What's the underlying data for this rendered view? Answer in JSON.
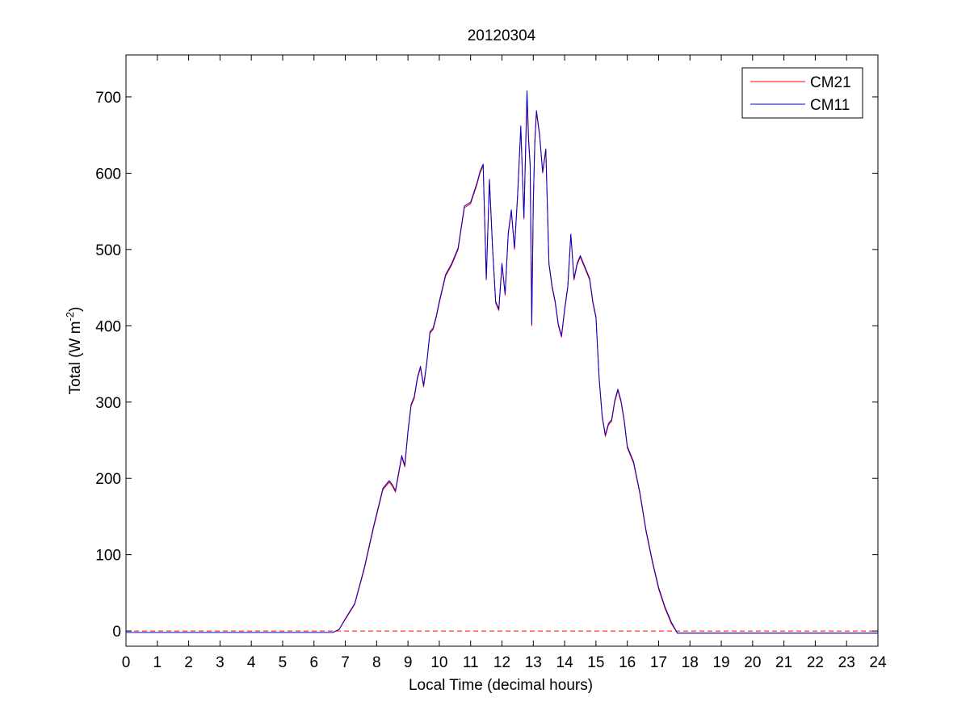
{
  "chart_data": {
    "type": "line",
    "title": "20120304",
    "xlabel": "Local Time (decimal hours)",
    "ylabel": {
      "prefix": "Total (W m",
      "superscript": "-2",
      "suffix": ")"
    },
    "xlim": [
      0,
      24
    ],
    "ylim": [
      -20,
      755
    ],
    "xticks": [
      0,
      1,
      2,
      3,
      4,
      5,
      6,
      7,
      8,
      9,
      10,
      11,
      12,
      13,
      14,
      15,
      16,
      17,
      18,
      19,
      20,
      21,
      22,
      23,
      24
    ],
    "yticks": [
      0,
      100,
      200,
      300,
      400,
      500,
      600,
      700
    ],
    "grid": false,
    "legend_position": "top-right",
    "reference_line": {
      "y": 0,
      "style": "dashed",
      "color": "#ff0000"
    },
    "series": [
      {
        "name": "CM21",
        "color": "#ff0000",
        "x": [
          0,
          1,
          2,
          3,
          4,
          5,
          6,
          6.6,
          6.8,
          7,
          7.3,
          7.6,
          7.9,
          8.2,
          8.4,
          8.5,
          8.6,
          8.7,
          8.8,
          8.9,
          9,
          9.1,
          9.2,
          9.3,
          9.4,
          9.5,
          9.6,
          9.7,
          9.8,
          9.9,
          10,
          10.2,
          10.4,
          10.6,
          10.8,
          11,
          11.2,
          11.3,
          11.4,
          11.5,
          11.6,
          11.7,
          11.8,
          11.9,
          12,
          12.1,
          12.2,
          12.3,
          12.4,
          12.5,
          12.6,
          12.7,
          12.8,
          12.85,
          12.9,
          12.95,
          13,
          13.05,
          13.1,
          13.2,
          13.3,
          13.4,
          13.5,
          13.6,
          13.7,
          13.8,
          13.9,
          14,
          14.1,
          14.2,
          14.3,
          14.4,
          14.5,
          14.6,
          14.7,
          14.8,
          14.9,
          15,
          15.1,
          15.2,
          15.3,
          15.4,
          15.5,
          15.6,
          15.7,
          15.8,
          15.9,
          16,
          16.2,
          16.4,
          16.6,
          16.8,
          17,
          17.2,
          17.4,
          17.6,
          17.8,
          18,
          18.2,
          19,
          20,
          21,
          22,
          23,
          24
        ],
        "y": [
          -2,
          -2,
          -2,
          -2,
          -2,
          -2,
          -2,
          -2,
          2,
          15,
          35,
          80,
          135,
          185,
          195,
          190,
          182,
          205,
          228,
          215,
          260,
          295,
          305,
          330,
          345,
          320,
          350,
          390,
          395,
          410,
          430,
          465,
          480,
          500,
          555,
          560,
          585,
          600,
          610,
          460,
          590,
          500,
          430,
          420,
          480,
          440,
          520,
          550,
          500,
          570,
          660,
          540,
          700,
          640,
          610,
          400,
          560,
          640,
          680,
          650,
          600,
          630,
          480,
          450,
          430,
          400,
          385,
          420,
          450,
          520,
          460,
          480,
          490,
          480,
          470,
          460,
          430,
          410,
          330,
          280,
          255,
          270,
          275,
          300,
          315,
          300,
          275,
          240,
          220,
          180,
          130,
          90,
          55,
          30,
          10,
          -3,
          -3,
          -3,
          -3,
          -3,
          -3,
          -3,
          -3,
          -3,
          -3
        ]
      },
      {
        "name": "CM11",
        "color": "#0000cc",
        "x": [
          0,
          1,
          2,
          3,
          4,
          5,
          6,
          6.6,
          6.8,
          7,
          7.3,
          7.6,
          7.9,
          8.2,
          8.4,
          8.5,
          8.6,
          8.7,
          8.8,
          8.9,
          9,
          9.1,
          9.2,
          9.3,
          9.4,
          9.5,
          9.6,
          9.7,
          9.8,
          9.9,
          10,
          10.2,
          10.4,
          10.6,
          10.8,
          11,
          11.2,
          11.3,
          11.4,
          11.5,
          11.6,
          11.7,
          11.8,
          11.9,
          12,
          12.1,
          12.2,
          12.3,
          12.4,
          12.5,
          12.6,
          12.7,
          12.8,
          12.85,
          12.9,
          12.95,
          13,
          13.05,
          13.1,
          13.2,
          13.3,
          13.4,
          13.5,
          13.6,
          13.7,
          13.8,
          13.9,
          14,
          14.1,
          14.2,
          14.3,
          14.4,
          14.5,
          14.6,
          14.7,
          14.8,
          14.9,
          15,
          15.1,
          15.2,
          15.3,
          15.4,
          15.5,
          15.6,
          15.7,
          15.8,
          15.9,
          16,
          16.2,
          16.4,
          16.6,
          16.8,
          17,
          17.2,
          17.4,
          17.6,
          17.8,
          18,
          18.2,
          19,
          20,
          21,
          22,
          23,
          24
        ],
        "y": [
          -2,
          -2,
          -2,
          -2,
          -2,
          -2,
          -2,
          -2,
          2,
          16,
          36,
          82,
          137,
          187,
          197,
          192,
          184,
          207,
          230,
          217,
          262,
          297,
          307,
          332,
          347,
          322,
          352,
          392,
          397,
          412,
          432,
          467,
          482,
          502,
          557,
          562,
          587,
          602,
          612,
          462,
          592,
          502,
          432,
          422,
          482,
          442,
          522,
          552,
          502,
          572,
          662,
          542,
          708,
          645,
          612,
          402,
          562,
          642,
          682,
          652,
          602,
          632,
          482,
          452,
          432,
          402,
          387,
          422,
          452,
          520,
          462,
          482,
          492,
          482,
          472,
          462,
          432,
          412,
          332,
          282,
          257,
          272,
          277,
          302,
          317,
          302,
          277,
          242,
          222,
          182,
          132,
          92,
          57,
          32,
          12,
          -3,
          -3,
          -3,
          -3,
          -3,
          -3,
          -3,
          -3,
          -3,
          -3
        ]
      }
    ]
  }
}
